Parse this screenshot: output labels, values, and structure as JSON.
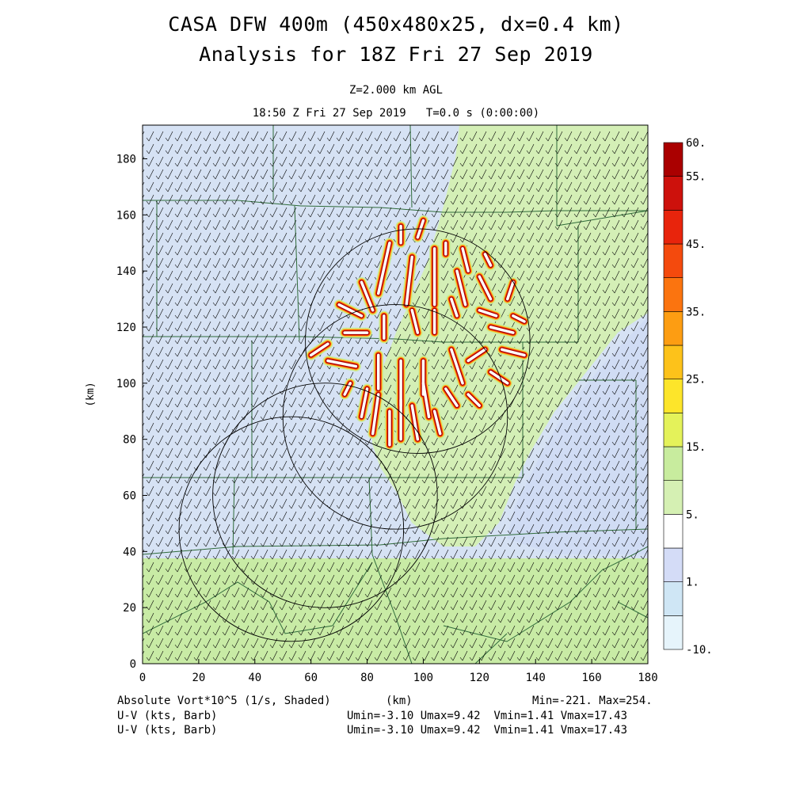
{
  "header": {
    "title_line1": "CASA DFW 400m (450x480x25, dx=0.4 km)",
    "title_line2": "Analysis for 18Z Fri 27 Sep 2019",
    "level": "Z=2.000 km AGL",
    "valid_time": "18:50 Z Fri 27 Sep 2019   T=0.0 s (0:00:00)"
  },
  "footer": {
    "field_label": "Absolute Vort*10^5 (1/s, Shaded)",
    "xunit": "(km)",
    "minmax": "Min=-221. Max=254.",
    "barb_label_1": "U-V (kts, Barb)",
    "barb_stats_1": "Umin=-3.10 Umax=9.42  Vmin=1.41 Vmax=17.43",
    "barb_label_2": "U-V (kts, Barb)",
    "barb_stats_2": "Umin=-3.10 Umax=9.42  Vmin=1.41 Vmax=17.43"
  },
  "chart_data": {
    "type": "heatmap",
    "title": "CASA DFW 400m (450x480x25, dx=0.4 km)",
    "subtitle": "Analysis for 18Z Fri 27 Sep 2019",
    "xlabel": "(km)",
    "ylabel": "(km)",
    "xlim": [
      0,
      180
    ],
    "ylim": [
      0,
      192
    ],
    "x_ticks": [
      0,
      20,
      40,
      60,
      80,
      100,
      120,
      140,
      160,
      180
    ],
    "y_ticks": [
      0,
      20,
      40,
      60,
      80,
      100,
      120,
      140,
      160,
      180
    ],
    "field": "Absolute Vort*10^5 (1/s)",
    "field_min": -221,
    "field_max": 254,
    "colorbar": {
      "levels": [
        -10,
        -5,
        1,
        3,
        5,
        10,
        15,
        20,
        25,
        30,
        35,
        40,
        45,
        50,
        55,
        60
      ],
      "labels": [
        {
          "value": 60,
          "text": "60."
        },
        {
          "value": 55,
          "text": "55."
        },
        {
          "value": 45,
          "text": "45."
        },
        {
          "value": 35,
          "text": "35."
        },
        {
          "value": 25,
          "text": "25."
        },
        {
          "value": 15,
          "text": "15."
        },
        {
          "value": 5,
          "text": "5."
        },
        {
          "value": 1,
          "text": "1."
        },
        {
          "value": -10,
          "text": "-10."
        }
      ],
      "colors": [
        "#e6f4fb",
        "#cfe6f5",
        "#d4dcf7",
        "#ffffff",
        "#d5f0b3",
        "#c8ec9e",
        "#e4f25a",
        "#fde52a",
        "#fdc21a",
        "#fd9d12",
        "#fb740f",
        "#f44a0d",
        "#e8240c",
        "#cd110c",
        "#aa0000"
      ]
    },
    "background_regions": [
      {
        "name": "north-west",
        "level": 1,
        "color": "#d6e2f4"
      },
      {
        "name": "north-east",
        "level": 5,
        "color": "#d4efb6"
      },
      {
        "name": "south",
        "level": 5,
        "color": "#c8eba5"
      }
    ],
    "radar_circles_center_km": [
      {
        "x": 98,
        "y": 115,
        "r": 40
      },
      {
        "x": 90,
        "y": 88,
        "r": 40
      },
      {
        "x": 53,
        "y": 48,
        "r": 40
      },
      {
        "x": 65,
        "y": 60,
        "r": 40
      }
    ],
    "vorticity_streaks": [
      [
        88,
        150,
        84,
        132
      ],
      [
        96,
        145,
        94,
        128
      ],
      [
        104,
        148,
        104,
        128
      ],
      [
        112,
        140,
        115,
        128
      ],
      [
        120,
        138,
        124,
        130
      ],
      [
        78,
        136,
        82,
        126
      ],
      [
        70,
        128,
        78,
        124
      ],
      [
        72,
        118,
        80,
        118
      ],
      [
        66,
        108,
        76,
        106
      ],
      [
        60,
        110,
        66,
        114
      ],
      [
        84,
        110,
        84,
        98
      ],
      [
        92,
        108,
        92,
        92
      ],
      [
        100,
        108,
        100,
        96
      ],
      [
        110,
        112,
        114,
        100
      ],
      [
        116,
        108,
        122,
        112
      ],
      [
        124,
        120,
        132,
        118
      ],
      [
        128,
        112,
        136,
        110
      ],
      [
        124,
        104,
        130,
        100
      ],
      [
        84,
        96,
        82,
        82
      ],
      [
        92,
        94,
        92,
        80
      ],
      [
        100,
        100,
        102,
        88
      ],
      [
        108,
        98,
        112,
        92
      ],
      [
        116,
        96,
        120,
        92
      ],
      [
        96,
        92,
        98,
        80
      ],
      [
        104,
        90,
        106,
        82
      ],
      [
        88,
        90,
        88,
        78
      ],
      [
        80,
        98,
        78,
        88
      ],
      [
        74,
        100,
        72,
        96
      ],
      [
        86,
        124,
        86,
        116
      ],
      [
        96,
        126,
        98,
        118
      ],
      [
        104,
        126,
        104,
        118
      ],
      [
        110,
        130,
        112,
        124
      ],
      [
        92,
        156,
        92,
        150
      ],
      [
        100,
        158,
        98,
        152
      ],
      [
        108,
        150,
        108,
        146
      ],
      [
        114,
        148,
        116,
        140
      ],
      [
        122,
        146,
        124,
        142
      ],
      [
        120,
        126,
        126,
        124
      ],
      [
        132,
        124,
        136,
        122
      ],
      [
        132,
        136,
        130,
        130
      ]
    ],
    "wind_barbs": {
      "u_min": -3.1,
      "u_max": 9.42,
      "v_min": 1.41,
      "v_max": 17.43,
      "units": "kts"
    }
  }
}
